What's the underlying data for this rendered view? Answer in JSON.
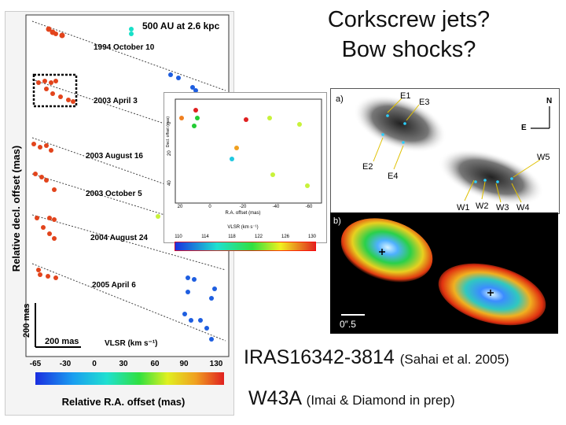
{
  "title": {
    "line1": "Corkscrew jets?",
    "line2": "Bow shocks?"
  },
  "left_panel": {
    "scale_label": "500 AU at 2.6 kpc",
    "epochs": [
      "1994 October 10",
      "2003 April 3",
      "2003 August 16",
      "2003 October 5",
      "2004 August 24",
      "2005 April 6"
    ],
    "ylabel": "Relative decl. offset (mas)",
    "xlabel": "Relative R.A. offset (mas)",
    "scalebar_v": "200 mas",
    "scalebar_h": "200 mas",
    "colorbar_label": "VLSR (km s⁻¹)",
    "colorbar_ticks": [
      "-65",
      "-30",
      "0",
      "30",
      "60",
      "90",
      "130"
    ]
  },
  "inset": {
    "xlabel": "R.A. offset (mas)",
    "ylabel": "Decl. offset (mas)",
    "xticks": [
      "20",
      "0",
      "-20",
      "-40",
      "-60"
    ],
    "yticks": [
      "0",
      "20",
      "40"
    ],
    "colorbar_label": "VLSR (km s⁻¹)",
    "colorbar_ticks": [
      "110",
      "114",
      "118",
      "122",
      "126",
      "130"
    ]
  },
  "image_a": {
    "panel_label": "a)",
    "labels": [
      "E1",
      "E3",
      "E2",
      "E4",
      "W5",
      "W1",
      "W2",
      "W3",
      "W4"
    ],
    "compass_n": "N",
    "compass_e": "E"
  },
  "image_b": {
    "panel_label": "b)",
    "scalebar": "0″.5"
  },
  "refs": {
    "ref1_main": "IRAS16342-3814",
    "ref1_cite": "(Sahai et al. 2005)",
    "ref2_main": "W43A",
    "ref2_cite": "(Imai & Diamond in prep)"
  },
  "colors": {
    "maser_red": "#e2441c",
    "maser_blue": "#1e5ee0",
    "maser_cyan": "#18e0c8",
    "maser_yellowgreen": "#c8f23a",
    "maser_green": "#22cc33",
    "maser_orange": "#f0a020"
  }
}
